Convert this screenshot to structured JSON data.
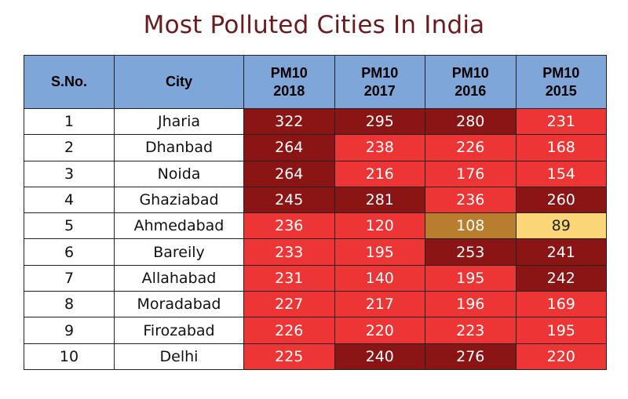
{
  "title": "Most Polluted Cities In India",
  "colors": {
    "header_bg": "#7ea6d8",
    "title": "#6b1a1e",
    "dark_red": "#8b1414",
    "red": "#ee3535",
    "brown": "#b87d2d",
    "yellow": "#fbd678"
  },
  "chart_data": {
    "type": "table",
    "title": "Most Polluted Cities In India",
    "columns": [
      "S.No.",
      "City",
      "PM10 2018",
      "PM10 2017",
      "PM10 2016",
      "PM10 2015"
    ],
    "header": {
      "sno": "S.No.",
      "city": "City",
      "years": [
        {
          "line1": "PM10",
          "line2": "2018"
        },
        {
          "line1": "PM10",
          "line2": "2017"
        },
        {
          "line1": "PM10",
          "line2": "2016"
        },
        {
          "line1": "PM10",
          "line2": "2015"
        }
      ]
    },
    "rows": [
      {
        "sno": "1",
        "city": "Jharia",
        "values": [
          322,
          295,
          280,
          231
        ],
        "colors": [
          "#8b1414",
          "#8b1414",
          "#8b1414",
          "#ee3535"
        ]
      },
      {
        "sno": "2",
        "city": "Dhanbad",
        "values": [
          264,
          238,
          226,
          168
        ],
        "colors": [
          "#8b1414",
          "#ee3535",
          "#ee3535",
          "#ee3535"
        ]
      },
      {
        "sno": "3",
        "city": "Noida",
        "values": [
          264,
          216,
          176,
          154
        ],
        "colors": [
          "#8b1414",
          "#ee3535",
          "#ee3535",
          "#ee3535"
        ]
      },
      {
        "sno": "4",
        "city": "Ghaziabad",
        "values": [
          245,
          281,
          236,
          260
        ],
        "colors": [
          "#8b1414",
          "#8b1414",
          "#ee3535",
          "#8b1414"
        ]
      },
      {
        "sno": "5",
        "city": "Ahmedabad",
        "values": [
          236,
          120,
          108,
          89
        ],
        "colors": [
          "#ee3535",
          "#ee3535",
          "#b87d2d",
          "#fbd678"
        ]
      },
      {
        "sno": "6",
        "city": "Bareily",
        "values": [
          233,
          195,
          253,
          241
        ],
        "colors": [
          "#ee3535",
          "#ee3535",
          "#8b1414",
          "#8b1414"
        ]
      },
      {
        "sno": "7",
        "city": "Allahabad",
        "values": [
          231,
          140,
          195,
          242
        ],
        "colors": [
          "#ee3535",
          "#ee3535",
          "#ee3535",
          "#8b1414"
        ]
      },
      {
        "sno": "8",
        "city": "Moradabad",
        "values": [
          227,
          217,
          196,
          169
        ],
        "colors": [
          "#ee3535",
          "#ee3535",
          "#ee3535",
          "#ee3535"
        ]
      },
      {
        "sno": "9",
        "city": "Firozabad",
        "values": [
          226,
          220,
          223,
          195
        ],
        "colors": [
          "#ee3535",
          "#ee3535",
          "#ee3535",
          "#ee3535"
        ]
      },
      {
        "sno": "10",
        "city": "Delhi",
        "values": [
          225,
          240,
          276,
          220
        ],
        "colors": [
          "#ee3535",
          "#8b1414",
          "#8b1414",
          "#ee3535"
        ]
      }
    ]
  }
}
